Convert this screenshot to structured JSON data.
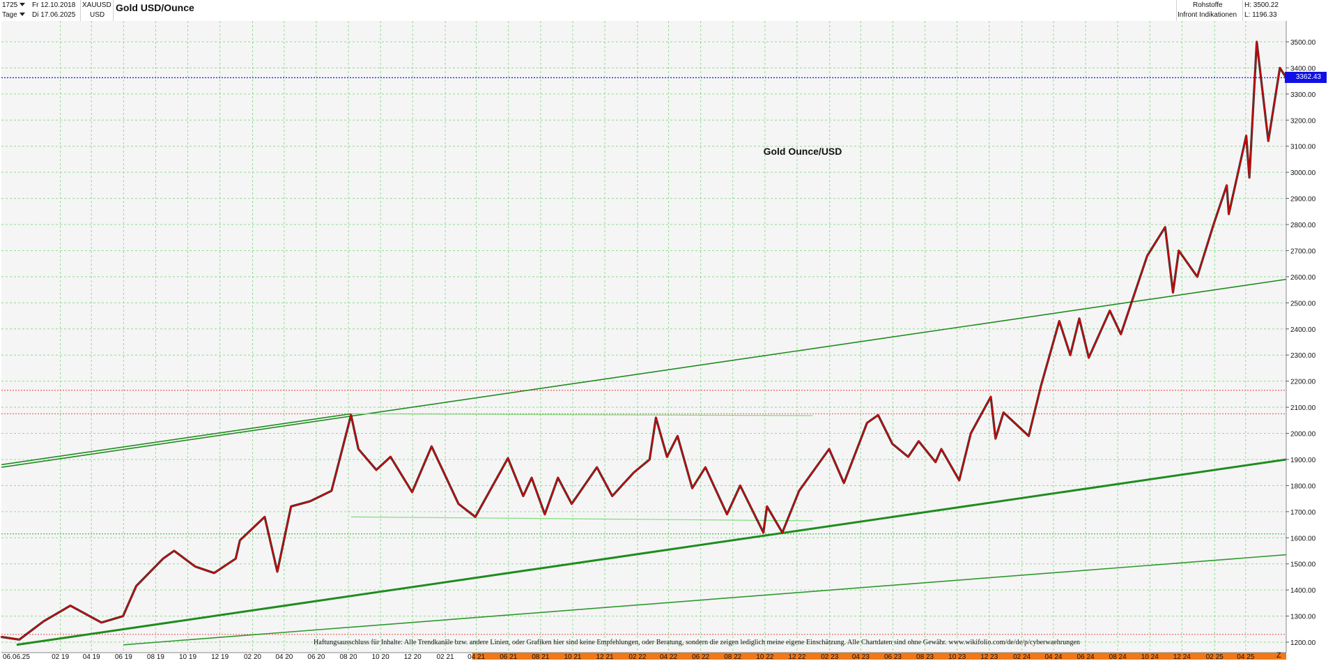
{
  "header": {
    "symbol_id": "1725",
    "start_date": "Fr 12.10.2018",
    "period": "Tage",
    "end_date": "Di 17.06.2025",
    "ticker": "XAUUSD",
    "currency": "USD",
    "title": "Gold USD/Ounce",
    "category": "Rohstoffe",
    "source": "Infront Indikationen",
    "high_label": "H: 3500.22",
    "low_label": "L: 1196.33",
    "last_price_label": "3362.43",
    "corner_label": "Z"
  },
  "chart_data": {
    "type": "line",
    "title": "Gold Ounce/USD",
    "disclaimer": "Haftungsausschluss für Inhalte: Alle Trendkanäle bzw. andere Linien, oder Grafiken hier sind keine Empfehlungen, oder Beratung, sondern die zeigen lediglich meine eigene Einschätzung. Alle Chartdaten sind ohne Gewähr. www.wikifolio.com/de/de/p/cyberwaehrungen",
    "y_axis_ticks": [
      1200,
      1300,
      1400,
      1500,
      1600,
      1700,
      1800,
      1900,
      2000,
      2100,
      2200,
      2300,
      2400,
      2500,
      2600,
      2700,
      2800,
      2900,
      3000,
      3100,
      3200,
      3300,
      3400,
      3500
    ],
    "y_axis_tick_labels": [
      "1200.00",
      "1300.00",
      "1400.00",
      "1500.00",
      "1600.00",
      "1700.00",
      "1800.00",
      "1900.00",
      "2000.00",
      "2100.00",
      "2200.00",
      "2300.00",
      "2400.00",
      "2500.00",
      "2600.00",
      "2700.00",
      "2800.00",
      "2900.00",
      "3000.00",
      "3100.00",
      "3200.00",
      "3300.00",
      "3400.00",
      "3500.00"
    ],
    "ylim": [
      1160,
      3580
    ],
    "x_axis_labels": [
      "06.06.25",
      "02 19",
      "04 19",
      "06 19",
      "08 19",
      "10 19",
      "12 19",
      "02 20",
      "04 20",
      "06 20",
      "08 20",
      "10 20",
      "12 20",
      "02 21",
      "04 21",
      "06 21",
      "08 21",
      "10 21",
      "12 21",
      "02 22",
      "04 22",
      "06 22",
      "08 22",
      "10 22",
      "12 22",
      "02 23",
      "04 23",
      "06 23",
      "08 23",
      "10 23",
      "12 23",
      "02 24",
      "04 24",
      "06 24",
      "08 24",
      "10 24",
      "12 24",
      "02 25",
      "04 25"
    ],
    "x_axis_months": [
      "2018-10",
      "2019-02",
      "2019-04",
      "2019-06",
      "2019-08",
      "2019-10",
      "2019-12",
      "2020-02",
      "2020-04",
      "2020-06",
      "2020-08",
      "2020-10",
      "2020-12",
      "2021-02",
      "2021-04",
      "2021-06",
      "2021-08",
      "2021-10",
      "2021-12",
      "2022-02",
      "2022-04",
      "2022-06",
      "2022-08",
      "2022-10",
      "2022-12",
      "2023-02",
      "2023-04",
      "2023-06",
      "2023-08",
      "2023-10",
      "2023-12",
      "2024-02",
      "2024-04",
      "2024-06",
      "2024-08",
      "2024-10",
      "2024-12",
      "2025-02",
      "2025-04"
    ],
    "highlighted_x_range": [
      "2021-04",
      "2025-06"
    ],
    "series": [
      {
        "values": [
          {
            "date": "2018-10-12",
            "value": 1220
          },
          {
            "date": "2018-11-15",
            "value": 1210
          },
          {
            "date": "2018-12-31",
            "value": 1280
          },
          {
            "date": "2019-02-20",
            "value": 1340
          },
          {
            "date": "2019-04-20",
            "value": 1275
          },
          {
            "date": "2019-05-31",
            "value": 1300
          },
          {
            "date": "2019-06-25",
            "value": 1415
          },
          {
            "date": "2019-08-15",
            "value": 1520
          },
          {
            "date": "2019-09-05",
            "value": 1550
          },
          {
            "date": "2019-10-15",
            "value": 1490
          },
          {
            "date": "2019-11-20",
            "value": 1465
          },
          {
            "date": "2019-12-31",
            "value": 1520
          },
          {
            "date": "2020-01-08",
            "value": 1590
          },
          {
            "date": "2020-02-24",
            "value": 1680
          },
          {
            "date": "2020-03-19",
            "value": 1470
          },
          {
            "date": "2020-04-14",
            "value": 1720
          },
          {
            "date": "2020-05-20",
            "value": 1740
          },
          {
            "date": "2020-06-30",
            "value": 1780
          },
          {
            "date": "2020-08-06",
            "value": 2070
          },
          {
            "date": "2020-08-20",
            "value": 1940
          },
          {
            "date": "2020-09-23",
            "value": 1860
          },
          {
            "date": "2020-10-20",
            "value": 1910
          },
          {
            "date": "2020-11-30",
            "value": 1775
          },
          {
            "date": "2021-01-06",
            "value": 1950
          },
          {
            "date": "2021-02-26",
            "value": 1730
          },
          {
            "date": "2021-03-30",
            "value": 1680
          },
          {
            "date": "2021-05-31",
            "value": 1905
          },
          {
            "date": "2021-06-29",
            "value": 1760
          },
          {
            "date": "2021-07-15",
            "value": 1830
          },
          {
            "date": "2021-08-09",
            "value": 1690
          },
          {
            "date": "2021-09-03",
            "value": 1830
          },
          {
            "date": "2021-09-29",
            "value": 1730
          },
          {
            "date": "2021-11-16",
            "value": 1870
          },
          {
            "date": "2021-12-15",
            "value": 1760
          },
          {
            "date": "2022-01-25",
            "value": 1850
          },
          {
            "date": "2022-02-24",
            "value": 1900
          },
          {
            "date": "2022-03-08",
            "value": 2060
          },
          {
            "date": "2022-03-29",
            "value": 1910
          },
          {
            "date": "2022-04-18",
            "value": 1990
          },
          {
            "date": "2022-05-16",
            "value": 1790
          },
          {
            "date": "2022-06-10",
            "value": 1870
          },
          {
            "date": "2022-07-21",
            "value": 1690
          },
          {
            "date": "2022-08-15",
            "value": 1800
          },
          {
            "date": "2022-09-28",
            "value": 1620
          },
          {
            "date": "2022-10-05",
            "value": 1720
          },
          {
            "date": "2022-11-03",
            "value": 1620
          },
          {
            "date": "2022-12-05",
            "value": 1780
          },
          {
            "date": "2023-01-31",
            "value": 1940
          },
          {
            "date": "2023-02-28",
            "value": 1810
          },
          {
            "date": "2023-04-13",
            "value": 2040
          },
          {
            "date": "2023-05-04",
            "value": 2070
          },
          {
            "date": "2023-05-31",
            "value": 1960
          },
          {
            "date": "2023-06-30",
            "value": 1910
          },
          {
            "date": "2023-07-20",
            "value": 1970
          },
          {
            "date": "2023-08-21",
            "value": 1890
          },
          {
            "date": "2023-09-01",
            "value": 1940
          },
          {
            "date": "2023-10-05",
            "value": 1820
          },
          {
            "date": "2023-10-27",
            "value": 2000
          },
          {
            "date": "2023-12-04",
            "value": 2140
          },
          {
            "date": "2023-12-13",
            "value": 1980
          },
          {
            "date": "2023-12-28",
            "value": 2080
          },
          {
            "date": "2024-02-14",
            "value": 1990
          },
          {
            "date": "2024-03-08",
            "value": 2180
          },
          {
            "date": "2024-04-12",
            "value": 2430
          },
          {
            "date": "2024-05-03",
            "value": 2300
          },
          {
            "date": "2024-05-20",
            "value": 2440
          },
          {
            "date": "2024-06-07",
            "value": 2290
          },
          {
            "date": "2024-07-17",
            "value": 2470
          },
          {
            "date": "2024-08-07",
            "value": 2380
          },
          {
            "date": "2024-09-26",
            "value": 2680
          },
          {
            "date": "2024-10-30",
            "value": 2790
          },
          {
            "date": "2024-11-14",
            "value": 2540
          },
          {
            "date": "2024-11-25",
            "value": 2700
          },
          {
            "date": "2024-12-30",
            "value": 2600
          },
          {
            "date": "2025-01-30",
            "value": 2800
          },
          {
            "date": "2025-02-24",
            "value": 2950
          },
          {
            "date": "2025-02-28",
            "value": 2840
          },
          {
            "date": "2025-04-02",
            "value": 3140
          },
          {
            "date": "2025-04-08",
            "value": 2980
          },
          {
            "date": "2025-04-22",
            "value": 3500
          },
          {
            "date": "2025-05-14",
            "value": 3120
          },
          {
            "date": "2025-06-05",
            "value": 3400
          },
          {
            "date": "2025-06-17",
            "value": 3362.43
          }
        ]
      }
    ],
    "trend_lines": [
      {
        "start": {
          "date": "2018-10-12",
          "value": 1870
        },
        "end": {
          "date": "2025-06-17",
          "value": 2590
        },
        "color": "#1e8c1e"
      },
      {
        "start": {
          "date": "2018-10-12",
          "value": 1880
        },
        "end": {
          "date": "2020-08-06",
          "value": 2075
        },
        "color": "#1e8c1e"
      },
      {
        "start": {
          "date": "2018-11-10",
          "value": 1190
        },
        "end": {
          "date": "2025-06-17",
          "value": 1900
        },
        "color": "#1e8c1e"
      },
      {
        "start": {
          "date": "2019-06-01",
          "value": 1190
        },
        "end": {
          "date": "2025-06-17",
          "value": 1535
        },
        "color": "#2d9a2d"
      },
      {
        "start": {
          "date": "2020-08-06",
          "value": 2075
        },
        "end": {
          "date": "2022-12-31",
          "value": 2068
        },
        "color": "#7ddc7d"
      },
      {
        "start": {
          "date": "2020-08-06",
          "value": 1680
        },
        "end": {
          "date": "2022-12-31",
          "value": 1665
        },
        "color": "#7ddc7d"
      }
    ],
    "horizontal_lines": [
      {
        "value": 3362.43,
        "color": "#2222dd",
        "style": "dotted"
      },
      {
        "value": 2165,
        "color": "#e87878",
        "style": "dotted"
      },
      {
        "value": 2075,
        "color": "#e87878",
        "style": "dotted"
      },
      {
        "value": 1615,
        "color": "#58c058",
        "style": "dotted"
      },
      {
        "value": 1230,
        "color": "#e87878",
        "style": "dotted"
      }
    ],
    "colors": {
      "price_line": "#e00000",
      "price_wick": "#111111",
      "grid": "#8fdc8f",
      "highlight_band": "#f07818"
    },
    "grid": true
  }
}
